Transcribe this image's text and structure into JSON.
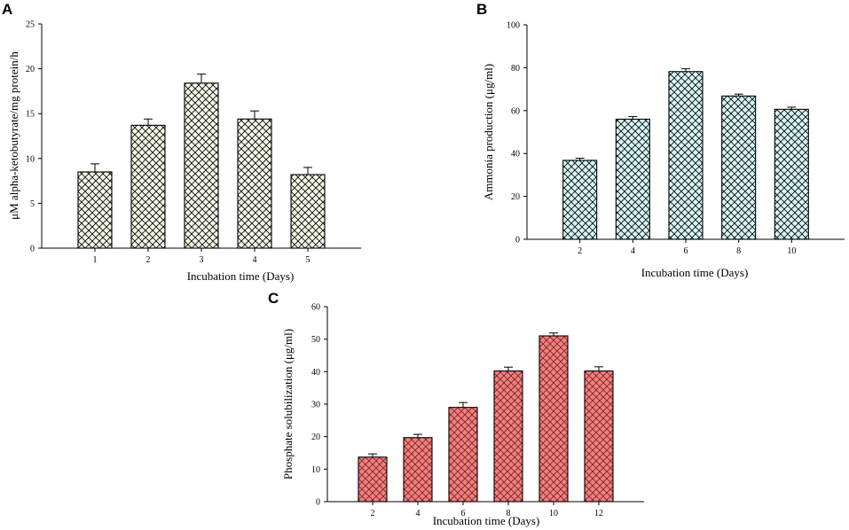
{
  "chart_data": [
    {
      "panel": "A",
      "type": "bar",
      "categories": [
        "1",
        "2",
        "3",
        "4",
        "5"
      ],
      "values": [
        8.5,
        13.7,
        18.4,
        14.4,
        8.2
      ],
      "errors": [
        0.9,
        0.7,
        1.0,
        0.9,
        0.8
      ],
      "xlabel": "Incubation time (Days)",
      "ylabel": "μM alpha-ketobutyrate/mg protein/h",
      "ylim": [
        0,
        25
      ],
      "yticks": [
        0,
        5,
        10,
        15,
        20,
        25
      ],
      "bar_fill": "#f3f7e6",
      "hatch_color": "#000000"
    },
    {
      "panel": "B",
      "type": "bar",
      "categories": [
        "2",
        "4",
        "6",
        "8",
        "10"
      ],
      "values": [
        36.8,
        56.0,
        78.2,
        66.8,
        60.6
      ],
      "errors": [
        1.0,
        1.2,
        1.3,
        0.9,
        1.0
      ],
      "xlabel": "Incubation time (Days)",
      "ylabel": "Ammonia production (μg/ml)",
      "ylim": [
        0,
        100
      ],
      "yticks": [
        0,
        20,
        40,
        60,
        80,
        100
      ],
      "bar_fill": "#d6f5f5",
      "hatch_color": "#000000"
    },
    {
      "panel": "C",
      "type": "bar",
      "categories": [
        "2",
        "4",
        "6",
        "8",
        "10",
        "12"
      ],
      "values": [
        13.7,
        19.7,
        29.0,
        40.2,
        51.0,
        40.2
      ],
      "errors": [
        1.0,
        1.0,
        1.5,
        1.2,
        0.9,
        1.3
      ],
      "xlabel": "Incubation time (Days)",
      "ylabel": "Phosphate solubilization (μg/ml)",
      "ylim": [
        0,
        60
      ],
      "yticks": [
        0,
        10,
        20,
        30,
        40,
        50,
        60
      ],
      "bar_fill": "#f08080",
      "hatch_color": "#7a1f1f"
    }
  ]
}
